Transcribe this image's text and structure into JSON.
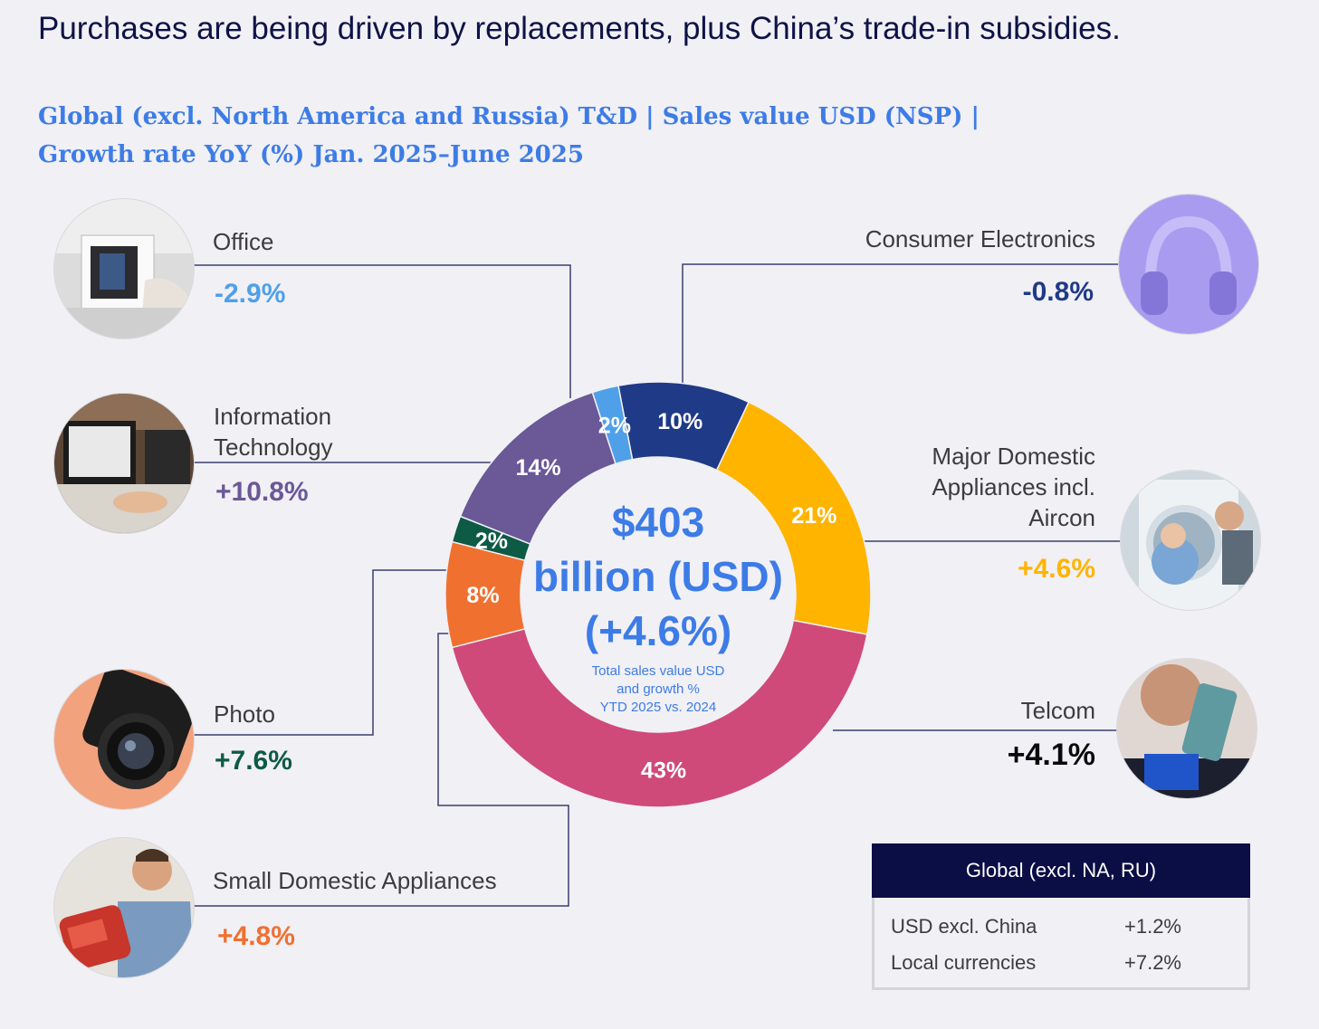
{
  "headline": "Purchases are being driven by replacements, plus China’s trade-in subsidies.",
  "chart_data": {
    "type": "pie",
    "subtitle_line1": "Global (excl. North America and Russia) T&D | Sales value USD (NSP) |",
    "subtitle_line2": "Growth rate YoY (%) Jan. 2025–June 2025",
    "center": {
      "line1": "$403",
      "line2": "billion (USD)",
      "line3": "(+4.6%)",
      "note1": "Total sales value USD",
      "note2": "and growth %",
      "note3": "YTD 2025 vs. 2024"
    },
    "slices": [
      {
        "id": "consumer-electronics",
        "label": "10%",
        "value": 10,
        "color": "#1f3a86"
      },
      {
        "id": "major-domestic-appliances",
        "label": "21%",
        "value": 21,
        "color": "#ffb400"
      },
      {
        "id": "telcom",
        "label": "43%",
        "value": 43,
        "color": "#cf4a78"
      },
      {
        "id": "small-domestic-appliances",
        "label": "8%",
        "value": 8,
        "color": "#f07030"
      },
      {
        "id": "photo",
        "label": "2%",
        "value": 2,
        "color": "#0d5a45"
      },
      {
        "id": "information-technology",
        "label": "14%",
        "value": 14,
        "color": "#6a5897"
      },
      {
        "id": "office",
        "label": "2%",
        "value": 2,
        "color": "#4fa0e8"
      }
    ],
    "categories": {
      "office": {
        "name": "Office",
        "growth": "-2.9%",
        "color": "#4fa0e8",
        "icon": "office-photo"
      },
      "information_technology": {
        "name1": "Information",
        "name2": "Technology",
        "growth": "+10.8%",
        "color": "#6a5897",
        "icon": "laptop-photo"
      },
      "photo": {
        "name": "Photo",
        "growth": "+7.6%",
        "color": "#0d5a45",
        "icon": "camera-photo"
      },
      "small_domestic_appliances": {
        "name": "Small Domestic Appliances",
        "growth": "+4.8%",
        "color": "#f07030",
        "icon": "kettle-photo"
      },
      "consumer_electronics": {
        "name": "Consumer Electronics",
        "growth": "-0.8%",
        "color": "#1f3a86",
        "icon": "headphones-photo"
      },
      "major_domestic_appliances": {
        "name1": "Major Domestic",
        "name2": "Appliances incl.",
        "name3": "Aircon",
        "growth": "+4.6%",
        "color": "#ffb400",
        "icon": "washing-machine-photo"
      },
      "telcom": {
        "name": "Telcom",
        "growth": "+4.1%",
        "color": "#0a0a0a",
        "icon": "phone-photo"
      }
    }
  },
  "global_box": {
    "title": "Global (excl. NA, RU)",
    "rows": [
      {
        "label": "USD excl. China",
        "value": "+1.2%"
      },
      {
        "label": "Local currencies",
        "value": "+7.2%"
      }
    ]
  }
}
